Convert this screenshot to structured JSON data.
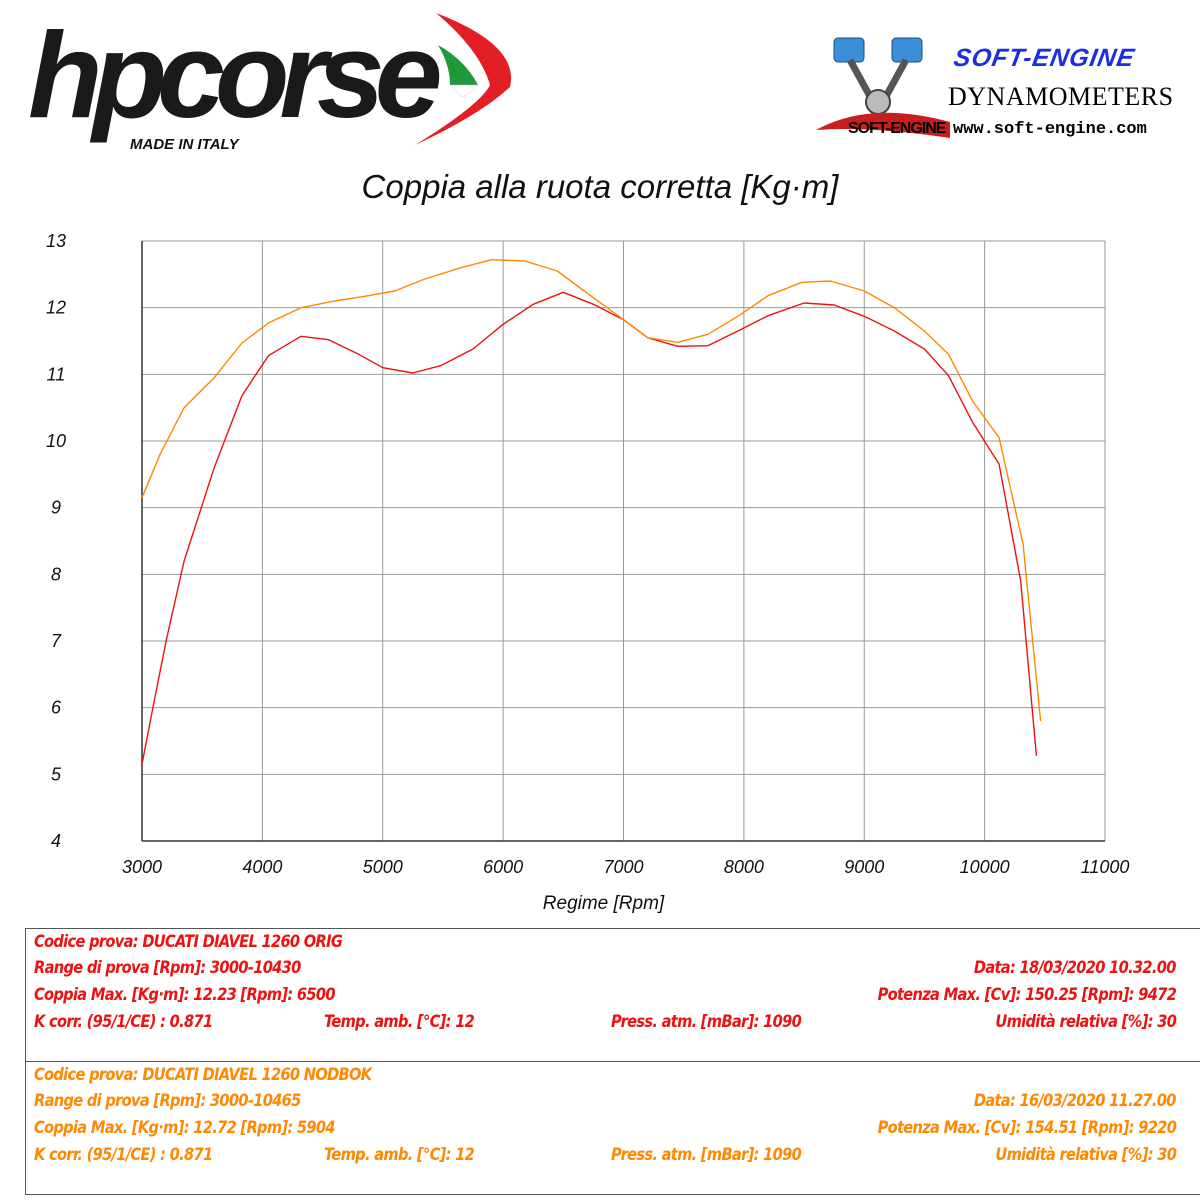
{
  "header": {
    "hp_logo": "hpcorse",
    "hp_sub": "MADE IN ITALY",
    "se_title": "SOFT-ENGINE",
    "se_dynamometers": "DYNAMOMETERS",
    "se_brand": "SOFT-ENGINE",
    "se_website": "www.soft-engine.com"
  },
  "colors": {
    "orig": "#ee1111",
    "nodbok": "#ff8800",
    "grid": "#999999"
  },
  "chart_data": {
    "type": "line",
    "title": "Coppia alla ruota corretta [Kg·m]",
    "xlabel": "Regime [Rpm]",
    "ylabel": "",
    "xlim": [
      3000,
      11000
    ],
    "ylim": [
      4,
      13
    ],
    "x_ticks": [
      "3000",
      "4000",
      "5000",
      "6000",
      "7000",
      "8000",
      "9000",
      "10000",
      "11000"
    ],
    "y_ticks": [
      "4",
      "5",
      "6",
      "7",
      "8",
      "9",
      "10",
      "11",
      "12",
      "13"
    ],
    "grid": true,
    "series": [
      {
        "name": "DUCATI DIAVEL 1260 ORIG",
        "color": "#ee1111",
        "x": [
          3000,
          3080,
          3200,
          3350,
          3600,
          3830,
          4050,
          4320,
          4550,
          4800,
          5000,
          5250,
          5480,
          5750,
          6000,
          6250,
          6500,
          6750,
          7000,
          7200,
          7450,
          7700,
          7950,
          8200,
          8500,
          8750,
          9000,
          9250,
          9500,
          9700,
          9900,
          10120,
          10300,
          10430
        ],
        "y": [
          5.15,
          5.9,
          7.0,
          8.2,
          9.6,
          10.68,
          11.28,
          11.57,
          11.52,
          11.3,
          11.1,
          11.02,
          11.13,
          11.38,
          11.75,
          12.05,
          12.23,
          12.05,
          11.82,
          11.55,
          11.42,
          11.43,
          11.65,
          11.88,
          12.07,
          12.04,
          11.87,
          11.65,
          11.38,
          10.98,
          10.28,
          9.65,
          7.9,
          5.28
        ]
      },
      {
        "name": "DUCATI DIAVEL 1260 NODBOK",
        "color": "#ff8800",
        "x": [
          3000,
          3150,
          3350,
          3600,
          3830,
          4050,
          4320,
          4600,
          4850,
          5100,
          5350,
          5650,
          5904,
          6180,
          6450,
          6750,
          7000,
          7200,
          7450,
          7700,
          7950,
          8200,
          8480,
          8720,
          9000,
          9250,
          9500,
          9700,
          9900,
          10120,
          10320,
          10465
        ],
        "y": [
          9.15,
          9.8,
          10.5,
          10.95,
          11.47,
          11.77,
          12.0,
          12.1,
          12.17,
          12.25,
          12.43,
          12.6,
          12.72,
          12.7,
          12.55,
          12.15,
          11.82,
          11.55,
          11.48,
          11.6,
          11.87,
          12.18,
          12.38,
          12.4,
          12.25,
          12.0,
          11.65,
          11.3,
          10.6,
          10.05,
          8.45,
          5.8
        ]
      }
    ]
  },
  "info_orig": {
    "codice": "Codice prova: DUCATI DIAVEL 1260 ORIG",
    "range": "Range di prova [Rpm]: 3000-10430",
    "data": "Data: 18/03/2020   10.32.00",
    "coppia": "Coppia Max. [Kg·m]: 12.23   [Rpm]: 6500",
    "potenza": "Potenza Max. [Cv]: 150.25   [Rpm]: 9472",
    "kcorr": "K corr. (95/1/CE) : 0.871",
    "temp": "Temp. amb. [°C]: 12",
    "press": "Press. atm. [mBar]: 1090",
    "umidita": "Umidità relativa [%]: 30"
  },
  "info_nodbok": {
    "codice": "Codice prova: DUCATI DIAVEL 1260 NODBOK",
    "range": "Range di prova [Rpm]: 3000-10465",
    "data": "Data: 16/03/2020   11.27.00",
    "coppia": "Coppia Max. [Kg·m]: 12.72   [Rpm]: 5904",
    "potenza": "Potenza Max. [Cv]: 154.51   [Rpm]: 9220",
    "kcorr": "K corr. (95/1/CE) : 0.871",
    "temp": "Temp. amb. [°C]: 12",
    "press": "Press. atm. [mBar]: 1090",
    "umidita": "Umidità relativa [%]: 30"
  }
}
